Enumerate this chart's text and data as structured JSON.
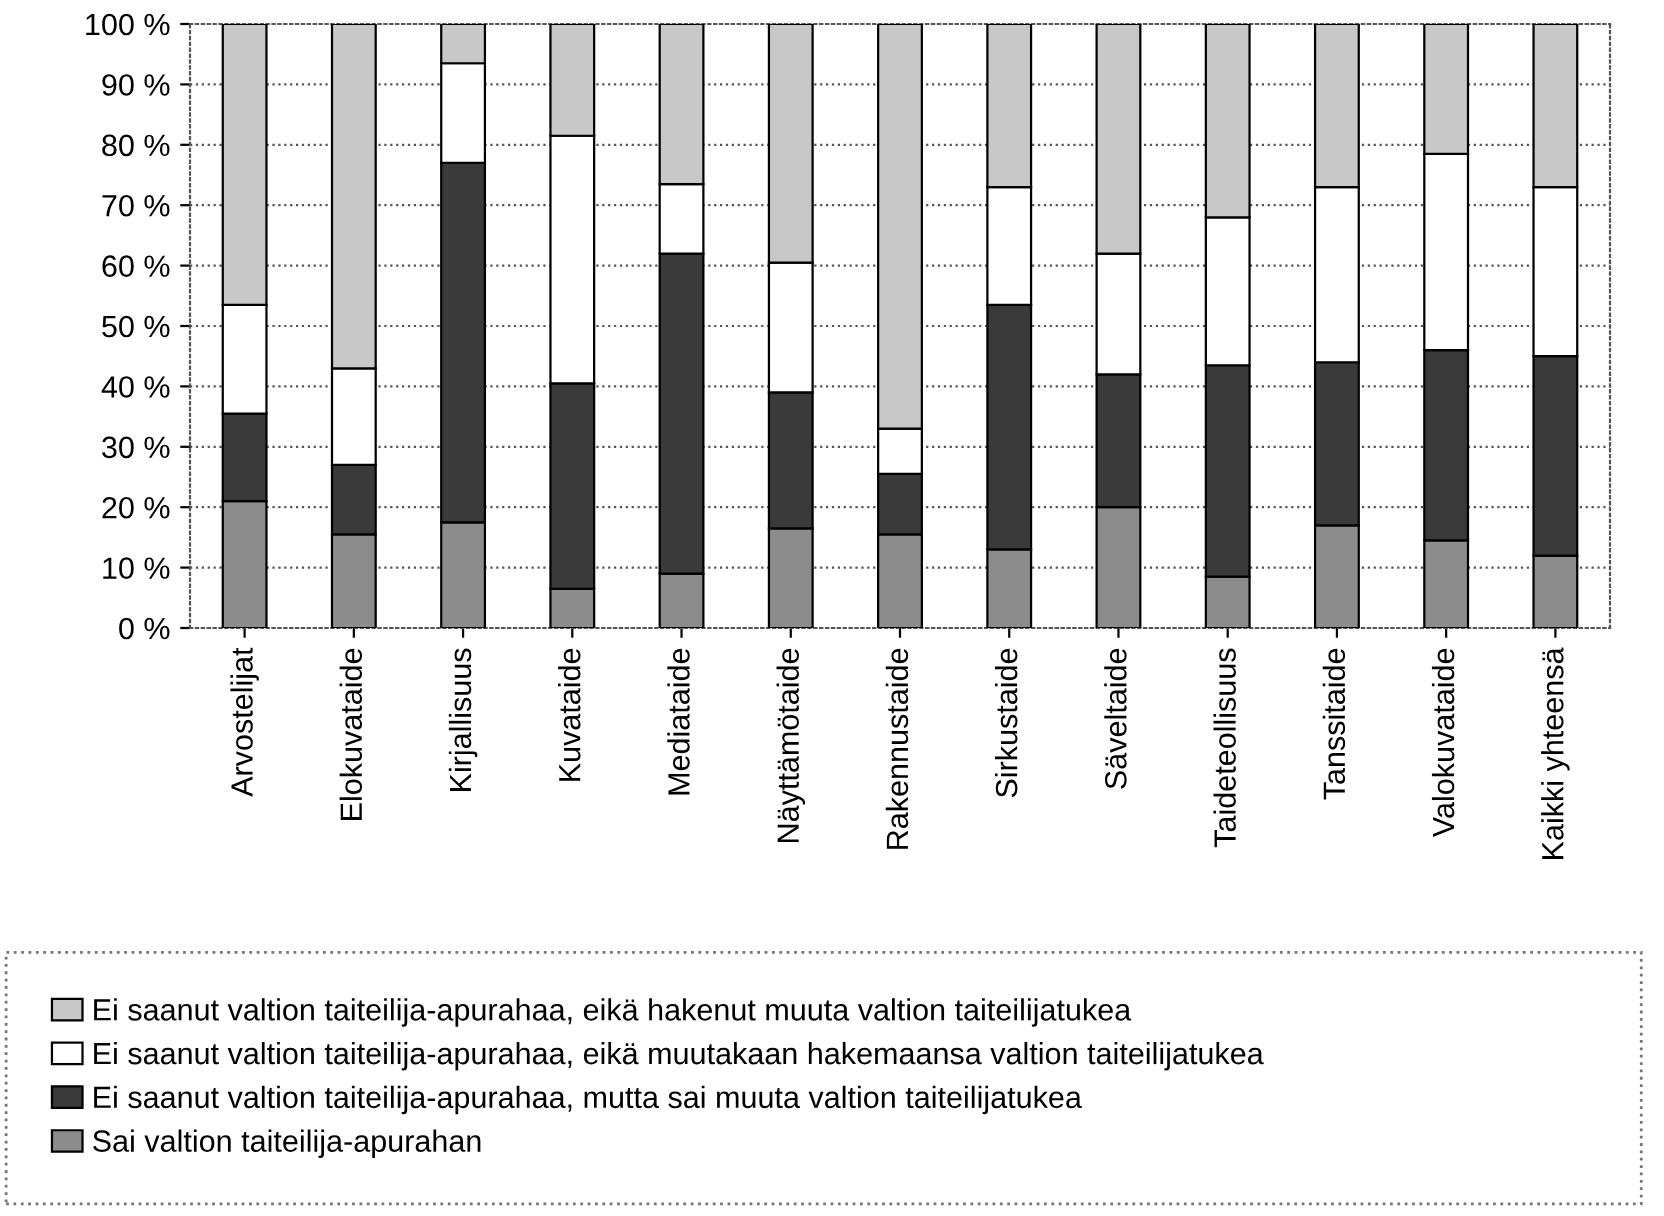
{
  "chart_data": {
    "type": "bar",
    "stacked": true,
    "categories": [
      "Arvostelijat",
      "Elokuvataide",
      "Kirjallisuus",
      "Kuvataide",
      "Mediataide",
      "Näyttämötaide",
      "Rakennustaide",
      "Sirkustaide",
      "Säveltaide",
      "Taideteollisuus",
      "Tanssitaide",
      "Valokuvataide",
      "Kaikki yhteensä"
    ],
    "series": [
      {
        "name": "Sai valtion taiteilija-apurahan",
        "color": "#8c8c8c",
        "values": [
          21,
          15.5,
          17.5,
          6.5,
          9,
          16.5,
          15.5,
          13,
          20,
          8.5,
          17,
          14.5,
          12
        ]
      },
      {
        "name": "Ei saanut valtion taiteilija-apurahaa, mutta sai muuta valtion taiteilijatukea",
        "color": "#3a3a3a",
        "values": [
          14.5,
          11.5,
          59.5,
          34,
          53,
          22.5,
          10,
          40.5,
          22,
          35,
          27,
          31.5,
          33
        ]
      },
      {
        "name": "Ei saanut valtion taiteilija-apurahaa, eikä muutakaan hakemaansa valtion taiteilijatukea",
        "color": "#ffffff",
        "values": [
          18,
          16,
          16.5,
          41,
          11.5,
          21.5,
          7.5,
          19.5,
          20,
          24.5,
          29,
          32.5,
          28
        ]
      },
      {
        "name": "Ei saanut valtion taiteilija-apurahaa, eikä hakenut muuta valtion taiteilijatukea",
        "color": "#c8c8c8",
        "values": [
          46.5,
          57,
          6.5,
          18.5,
          26.5,
          39.5,
          67,
          27,
          38,
          32,
          27,
          21.5,
          27
        ]
      }
    ],
    "ylim": [
      0,
      100
    ],
    "yticks": [
      {
        "value": 0,
        "label": "0 %"
      },
      {
        "value": 10,
        "label": "10 %"
      },
      {
        "value": 20,
        "label": "20 %"
      },
      {
        "value": 30,
        "label": "30 %"
      },
      {
        "value": 40,
        "label": "40 %"
      },
      {
        "value": 50,
        "label": "50 %"
      },
      {
        "value": 60,
        "label": "60 %"
      },
      {
        "value": 70,
        "label": "70 %"
      },
      {
        "value": 80,
        "label": "80 %"
      },
      {
        "value": 90,
        "label": "90 %"
      },
      {
        "value": 100,
        "label": "100 %"
      }
    ],
    "grid": "y",
    "legend": "bottom"
  }
}
